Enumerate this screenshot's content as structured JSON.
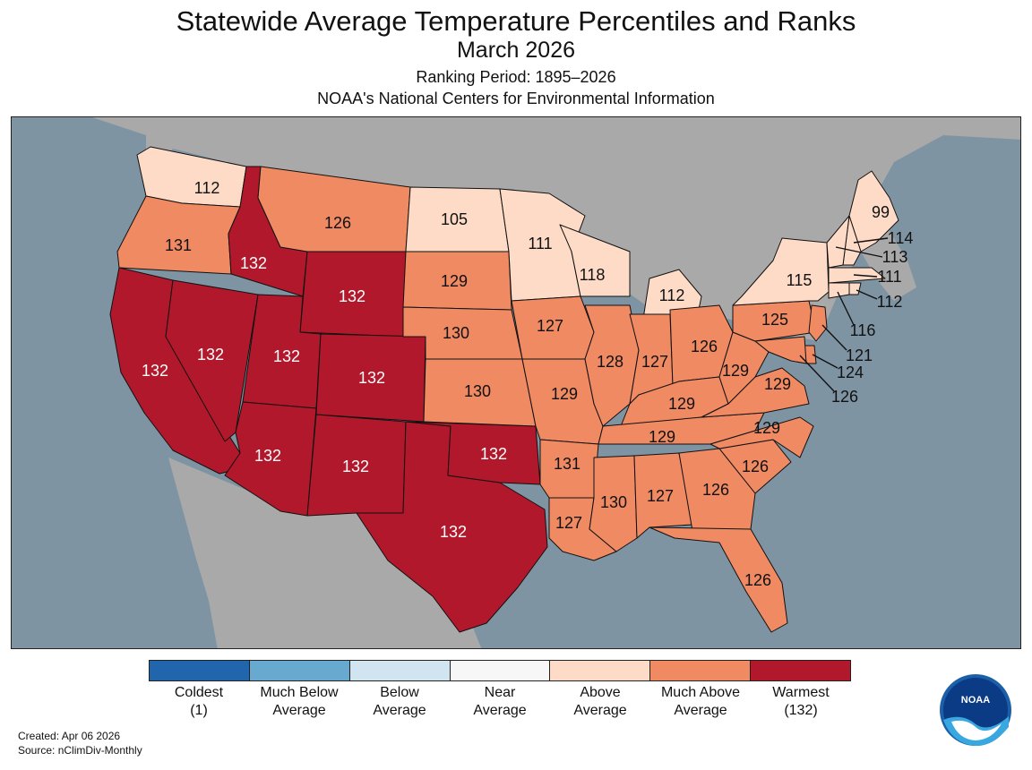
{
  "title": "Statewide Average Temperature Percentiles and Ranks",
  "subtitle": "March 2026",
  "ranking_period": "Ranking Period: 1895–2026",
  "agency": "NOAA's National Centers for Environmental Information",
  "created": "Created: Apr 06 2026",
  "source": "Source: nClimDiv-Monthly",
  "logo_text": "NOAA",
  "colors": {
    "ocean": "#7f94a3",
    "land": "#a9a9a9",
    "coldest": "#2166ac",
    "much_below": "#67a9cf",
    "below": "#d1e5f0",
    "near": "#f7f7f7",
    "above": "#fddbc7",
    "much_above": "#ef8a62",
    "warmest": "#b2182b"
  },
  "legend": [
    {
      "line1": "Coldest",
      "line2": "(1)",
      "color": "#2166ac"
    },
    {
      "line1": "Much Below",
      "line2": "Average",
      "color": "#67a9cf"
    },
    {
      "line1": "Below",
      "line2": "Average",
      "color": "#d1e5f0"
    },
    {
      "line1": "Near",
      "line2": "Average",
      "color": "#f7f7f7"
    },
    {
      "line1": "Above",
      "line2": "Average",
      "color": "#fddbc7"
    },
    {
      "line1": "Much Above",
      "line2": "Average",
      "color": "#ef8a62"
    },
    {
      "line1": "Warmest",
      "line2": "(132)",
      "color": "#b2182b"
    }
  ],
  "states": [
    {
      "id": "WA",
      "rank": "112",
      "category": "above"
    },
    {
      "id": "OR",
      "rank": "131",
      "category": "much_above"
    },
    {
      "id": "CA",
      "rank": "132",
      "category": "warmest"
    },
    {
      "id": "ID",
      "rank": "132",
      "category": "warmest"
    },
    {
      "id": "NV",
      "rank": "132",
      "category": "warmest"
    },
    {
      "id": "MT",
      "rank": "126",
      "category": "much_above"
    },
    {
      "id": "WY",
      "rank": "132",
      "category": "warmest"
    },
    {
      "id": "UT",
      "rank": "132",
      "category": "warmest"
    },
    {
      "id": "CO",
      "rank": "132",
      "category": "warmest"
    },
    {
      "id": "AZ",
      "rank": "132",
      "category": "warmest"
    },
    {
      "id": "NM",
      "rank": "132",
      "category": "warmest"
    },
    {
      "id": "TX",
      "rank": "132",
      "category": "warmest"
    },
    {
      "id": "OK",
      "rank": "132",
      "category": "warmest"
    },
    {
      "id": "ND",
      "rank": "105",
      "category": "above"
    },
    {
      "id": "SD",
      "rank": "129",
      "category": "much_above"
    },
    {
      "id": "NE",
      "rank": "130",
      "category": "much_above"
    },
    {
      "id": "KS",
      "rank": "130",
      "category": "much_above"
    },
    {
      "id": "MN",
      "rank": "111",
      "category": "above"
    },
    {
      "id": "IA",
      "rank": "127",
      "category": "much_above"
    },
    {
      "id": "MO",
      "rank": "129",
      "category": "much_above"
    },
    {
      "id": "AR",
      "rank": "131",
      "category": "much_above"
    },
    {
      "id": "LA",
      "rank": "127",
      "category": "much_above"
    },
    {
      "id": "WI",
      "rank": "118",
      "category": "above"
    },
    {
      "id": "IL",
      "rank": "128",
      "category": "much_above"
    },
    {
      "id": "MI",
      "rank": "112",
      "category": "above"
    },
    {
      "id": "IN",
      "rank": "127",
      "category": "much_above"
    },
    {
      "id": "OH",
      "rank": "126",
      "category": "much_above"
    },
    {
      "id": "KY",
      "rank": "129",
      "category": "much_above"
    },
    {
      "id": "TN",
      "rank": "129",
      "category": "much_above"
    },
    {
      "id": "MS",
      "rank": "130",
      "category": "much_above"
    },
    {
      "id": "AL",
      "rank": "127",
      "category": "much_above"
    },
    {
      "id": "GA",
      "rank": "126",
      "category": "much_above"
    },
    {
      "id": "FL",
      "rank": "126",
      "category": "much_above"
    },
    {
      "id": "SC",
      "rank": "126",
      "category": "much_above"
    },
    {
      "id": "NC",
      "rank": "129",
      "category": "much_above"
    },
    {
      "id": "VA",
      "rank": "129",
      "category": "much_above"
    },
    {
      "id": "WV",
      "rank": "129",
      "category": "much_above"
    },
    {
      "id": "PA",
      "rank": "125",
      "category": "much_above"
    },
    {
      "id": "NY",
      "rank": "115",
      "category": "above"
    },
    {
      "id": "ME",
      "rank": "99",
      "category": "above"
    },
    {
      "id": "NH",
      "rank": "114",
      "category": "above"
    },
    {
      "id": "VT",
      "rank": "113",
      "category": "above"
    },
    {
      "id": "MA",
      "rank": "111",
      "category": "above"
    },
    {
      "id": "RI",
      "rank": "112",
      "category": "above"
    },
    {
      "id": "CT",
      "rank": "116",
      "category": "above"
    },
    {
      "id": "NJ",
      "rank": "121",
      "category": "much_above"
    },
    {
      "id": "DE",
      "rank": "124",
      "category": "much_above"
    },
    {
      "id": "MD",
      "rank": "126",
      "category": "much_above"
    }
  ]
}
